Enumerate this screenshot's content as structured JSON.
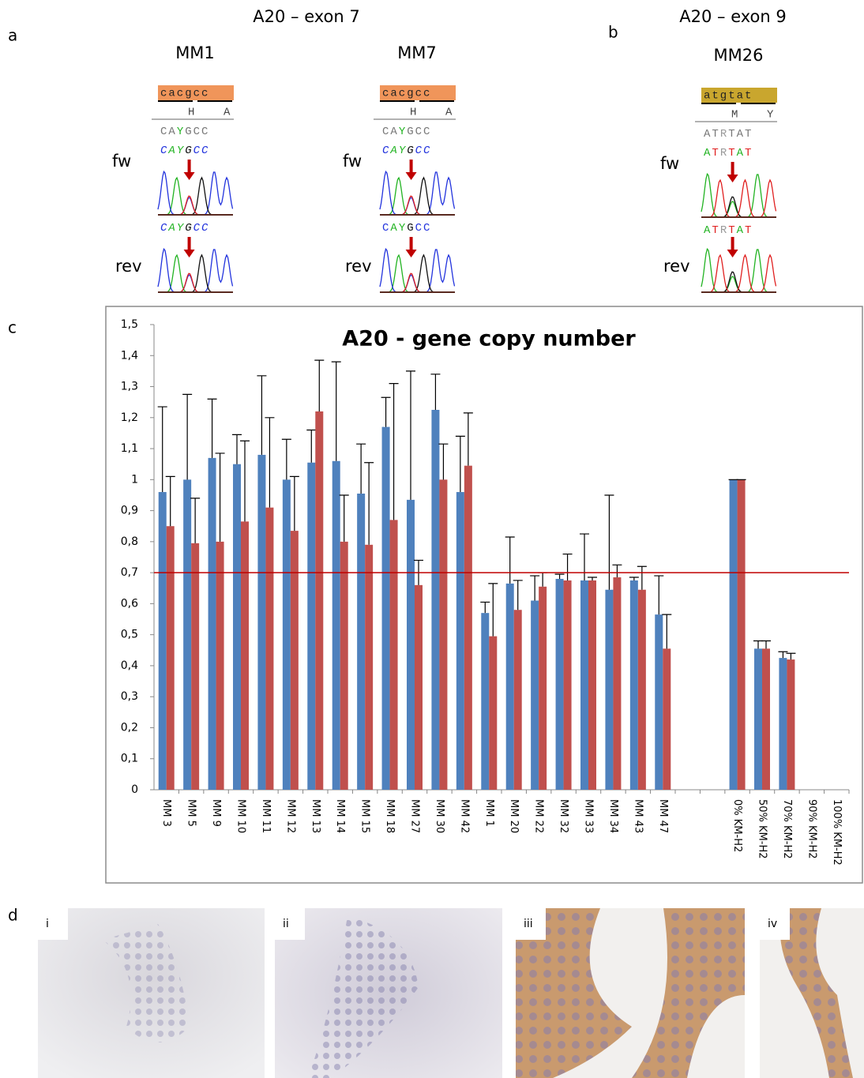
{
  "panel_labels": [
    "a",
    "b",
    "c",
    "d"
  ],
  "exon_headers": [
    "A20 – exon 7",
    "A20 – exon 9"
  ],
  "strand_labels": {
    "fw": "fw",
    "rev": "rev"
  },
  "sequencing": [
    {
      "sample": "MM1",
      "ref": "cacgcc",
      "aa": [
        "H",
        "A"
      ],
      "consensus": "CAYGCC",
      "fw_read": "CAYGCC",
      "rev_read": "CAYGCC"
    },
    {
      "sample": "MM7",
      "ref": "cacgcc",
      "aa": [
        "H",
        "A"
      ],
      "consensus": "CAYGCC",
      "fw_read": "CAYGCC",
      "rev_read": "CAYGCC"
    },
    {
      "sample": "MM26",
      "ref": "atgtat",
      "aa": [
        "M",
        "Y"
      ],
      "consensus": "ATRTAT",
      "fw_read": "ATRTAT",
      "rev_read": "ATRTAT"
    }
  ],
  "chart_data": {
    "type": "bar",
    "title": "A20 - gene copy number",
    "categories": [
      "MM 3",
      "MM 5",
      "MM 9",
      "MM 10",
      "MM 11",
      "MM 12",
      "MM 13",
      "MM 14",
      "MM 15",
      "MM 18",
      "MM 27",
      "MM 30",
      "MM 42",
      "MM 1",
      "MM 20",
      "MM 22",
      "MM 32",
      "MM 33",
      "MM 34",
      "MM 43",
      "MM 47",
      null,
      null,
      "0% KM-H2",
      "50% KM-H2",
      "70% KM-H2",
      "90% KM-H2",
      "100% KM-H2"
    ],
    "series": [
      {
        "color": "#4f81bd",
        "values": [
          0.96,
          1.0,
          1.07,
          1.05,
          1.08,
          1.0,
          1.055,
          1.06,
          0.955,
          1.17,
          0.935,
          1.225,
          0.96,
          0.57,
          0.665,
          0.61,
          0.68,
          0.675,
          0.645,
          0.675,
          0.565,
          null,
          null,
          1.0,
          0.455,
          0.425,
          null,
          null
        ],
        "errors": [
          0.275,
          0.275,
          0.19,
          0.095,
          0.255,
          0.13,
          0.105,
          0.32,
          0.16,
          0.095,
          0.415,
          0.115,
          0.18,
          0.035,
          0.15,
          0.08,
          0.015,
          0.15,
          0.305,
          0.01,
          0.125,
          null,
          null,
          0,
          0.025,
          0.02,
          null,
          null
        ]
      },
      {
        "color": "#c0504d",
        "values": [
          0.85,
          0.795,
          0.8,
          0.865,
          0.91,
          0.835,
          1.22,
          0.8,
          0.79,
          0.87,
          0.66,
          1.0,
          1.045,
          0.495,
          0.58,
          0.655,
          0.675,
          0.675,
          0.685,
          0.645,
          0.455,
          null,
          null,
          1.0,
          0.455,
          0.42,
          null,
          null
        ],
        "errors": [
          0.16,
          0.145,
          0.285,
          0.26,
          0.29,
          0.175,
          0.165,
          0.15,
          0.265,
          0.44,
          0.08,
          0.115,
          0.17,
          0.17,
          0.095,
          0.045,
          0.085,
          0.01,
          0.04,
          0.075,
          0.11,
          null,
          null,
          0,
          0.025,
          0.02,
          null,
          null
        ]
      }
    ],
    "ylim": [
      0,
      1.5
    ],
    "yticks": [
      0,
      {
        "value": 0.1,
        "label": "0,1"
      },
      {
        "value": 0.2,
        "label": "0,2"
      },
      {
        "value": 0.3,
        "label": "0,3"
      },
      {
        "value": 0.4,
        "label": "0,4"
      },
      {
        "value": 0.5,
        "label": "0,5"
      },
      {
        "value": 0.6,
        "label": "0,6"
      },
      {
        "value": 0.7,
        "label": "0,7"
      },
      {
        "value": 0.8,
        "label": "0,8"
      },
      {
        "value": 0.9,
        "label": "0,9"
      },
      1,
      {
        "value": 1.1,
        "label": "1,1"
      },
      {
        "value": 1.2,
        "label": "1,2"
      },
      {
        "value": 1.3,
        "label": "1,3"
      },
      {
        "value": 1.4,
        "label": "1,4"
      },
      {
        "value": 1.5,
        "label": "1,5"
      }
    ],
    "threshold": 0.7,
    "threshold_color": "#c00000",
    "grid": false
  },
  "image_labels": [
    "i",
    "ii",
    "iii",
    "iv"
  ]
}
